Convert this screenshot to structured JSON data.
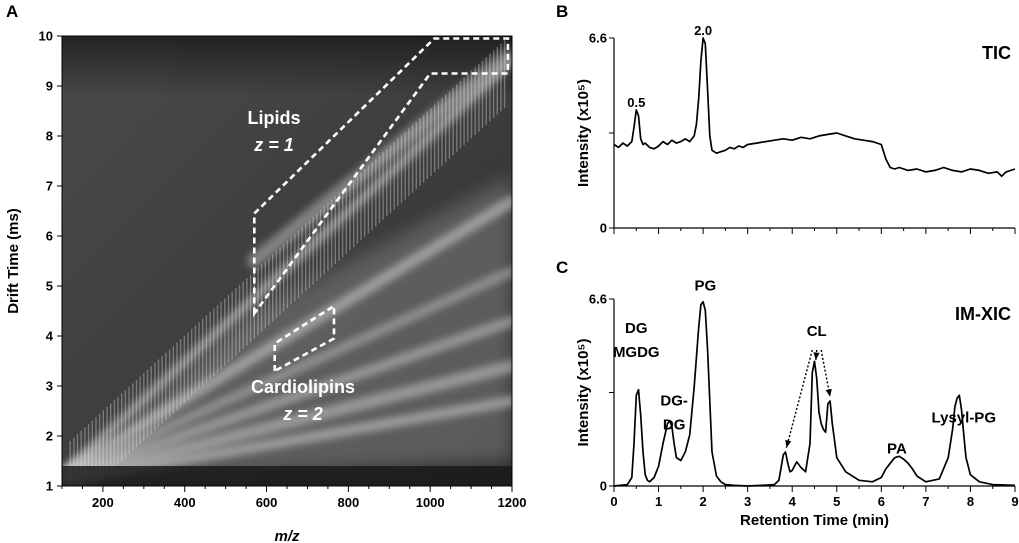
{
  "panels": {
    "a": "A",
    "b": "B",
    "c": "C"
  },
  "chart_data": [
    {
      "id": "A",
      "type": "heatmap",
      "xlabel": "m/z",
      "ylabel": "Drift Time (ms)",
      "xlim": [
        100,
        1200
      ],
      "ylim": [
        1,
        10
      ],
      "xticks": [
        "200",
        "400",
        "600",
        "800",
        "1000",
        "1200"
      ],
      "yticks": [
        "1",
        "2",
        "3",
        "4",
        "5",
        "6",
        "7",
        "8",
        "9",
        "10"
      ],
      "colors": {
        "background": "#3a3a3a",
        "trend": "#d8d8d8",
        "region_outline": "#ffffff"
      },
      "regions": [
        {
          "name": "lipids",
          "label_line1": "Lipids",
          "label_line2": "z = 1",
          "polygon": [
            [
              570,
              4.45
            ],
            [
              570,
              6.45
            ],
            [
              1010,
              9.95
            ],
            [
              1190,
              9.95
            ],
            [
              1190,
              9.25
            ],
            [
              1000,
              9.25
            ]
          ]
        },
        {
          "name": "cardiolipins",
          "label_line1": "Cardiolipins",
          "label_line2": "z = 2",
          "polygon": [
            [
              620,
              3.3
            ],
            [
              620,
              3.85
            ],
            [
              765,
              4.6
            ],
            [
              765,
              3.95
            ]
          ]
        }
      ]
    },
    {
      "id": "B",
      "type": "line",
      "title": "TIC",
      "ylabel": "Intensity (x10⁵)",
      "xlim": [
        0,
        9
      ],
      "ylim": [
        0,
        6.6
      ],
      "yticks": [
        "0",
        "6.6"
      ],
      "grid": false,
      "annotations": [
        {
          "text": "0.5",
          "x": 0.5,
          "y": 4.2
        },
        {
          "text": "2.0",
          "x": 2.0,
          "y": 6.7
        }
      ],
      "series": [
        {
          "x": [
            0,
            0.1,
            0.2,
            0.3,
            0.4,
            0.45,
            0.5,
            0.55,
            0.6,
            0.65,
            0.7,
            0.8,
            0.9,
            1.0,
            1.1,
            1.2,
            1.3,
            1.4,
            1.5,
            1.6,
            1.7,
            1.8,
            1.85,
            1.9,
            1.95,
            2.0,
            2.05,
            2.1,
            2.15,
            2.2,
            2.3,
            2.4,
            2.5,
            2.6,
            2.7,
            2.8,
            2.9,
            3.0,
            3.2,
            3.4,
            3.6,
            3.8,
            4.0,
            4.2,
            4.4,
            4.6,
            4.8,
            5.0,
            5.2,
            5.4,
            5.6,
            5.8,
            6.0,
            6.1,
            6.2,
            6.3,
            6.4,
            6.6,
            6.8,
            7.0,
            7.2,
            7.4,
            7.6,
            7.8,
            8.0,
            8.2,
            8.4,
            8.6,
            8.7,
            8.8,
            9.0
          ],
          "y": [
            2.9,
            2.8,
            2.95,
            2.85,
            3.0,
            3.5,
            4.1,
            3.9,
            3.1,
            2.9,
            2.95,
            2.8,
            2.75,
            2.85,
            3.0,
            2.9,
            3.05,
            2.95,
            3.0,
            3.1,
            3.0,
            3.2,
            3.6,
            4.5,
            5.8,
            6.6,
            6.4,
            4.8,
            3.2,
            2.7,
            2.6,
            2.65,
            2.7,
            2.8,
            2.75,
            2.85,
            2.8,
            2.9,
            2.95,
            3.0,
            3.05,
            3.1,
            3.05,
            3.15,
            3.1,
            3.2,
            3.25,
            3.3,
            3.2,
            3.1,
            3.05,
            3.0,
            2.9,
            2.4,
            2.1,
            2.05,
            2.1,
            2.0,
            2.05,
            1.95,
            2.0,
            2.1,
            2.0,
            1.95,
            2.05,
            2.0,
            1.9,
            1.95,
            1.8,
            1.95,
            2.05
          ]
        }
      ]
    },
    {
      "id": "C",
      "type": "line",
      "title": "IM-XIC",
      "xlabel": "Retention Time (min)",
      "ylabel": "Intensity (x10⁵)",
      "xlim": [
        0,
        9
      ],
      "ylim": [
        0,
        6.6
      ],
      "xticks": [
        "0",
        "1",
        "2",
        "3",
        "4",
        "5",
        "6",
        "7",
        "8",
        "9"
      ],
      "yticks": [
        "0",
        "6.6"
      ],
      "grid": false,
      "annotations": [
        {
          "text": "DG",
          "x": 0.5,
          "y": 5.4
        },
        {
          "text": "MGDG",
          "x": 0.5,
          "y": 4.55
        },
        {
          "text": "DG-",
          "x": 1.35,
          "y": 2.85
        },
        {
          "text": "DG",
          "x": 1.35,
          "y": 2.0
        },
        {
          "text": "PG",
          "x": 2.05,
          "y": 6.9
        },
        {
          "text": "CL",
          "x": 4.55,
          "y": 5.3
        },
        {
          "text": "PA",
          "x": 6.35,
          "y": 1.15
        },
        {
          "text": "Lysyl-PG",
          "x": 7.85,
          "y": 2.25
        }
      ],
      "series": [
        {
          "x": [
            0,
            0.3,
            0.4,
            0.45,
            0.5,
            0.55,
            0.6,
            0.65,
            0.7,
            0.75,
            0.8,
            0.9,
            1.0,
            1.1,
            1.2,
            1.25,
            1.3,
            1.35,
            1.4,
            1.5,
            1.6,
            1.7,
            1.8,
            1.9,
            1.95,
            2.0,
            2.05,
            2.1,
            2.15,
            2.2,
            2.3,
            2.4,
            2.5,
            2.7,
            3.0,
            3.3,
            3.6,
            3.7,
            3.8,
            3.85,
            3.9,
            3.95,
            4.0,
            4.1,
            4.2,
            4.3,
            4.4,
            4.45,
            4.5,
            4.55,
            4.6,
            4.65,
            4.7,
            4.75,
            4.8,
            4.85,
            4.9,
            5.0,
            5.2,
            5.5,
            5.8,
            6.0,
            6.1,
            6.2,
            6.3,
            6.4,
            6.5,
            6.6,
            6.7,
            6.8,
            7.0,
            7.3,
            7.5,
            7.6,
            7.65,
            7.7,
            7.75,
            7.8,
            7.85,
            7.9,
            8.0,
            8.2,
            8.5,
            9.0
          ],
          "y": [
            0,
            0.05,
            0.3,
            1.5,
            3.2,
            3.4,
            2.5,
            1.2,
            0.4,
            0.2,
            0.15,
            0.3,
            0.7,
            1.5,
            2.2,
            2.3,
            2.1,
            1.5,
            1.0,
            0.9,
            1.2,
            1.8,
            3.5,
            5.6,
            6.4,
            6.5,
            6.2,
            4.8,
            3.0,
            1.2,
            0.35,
            0.15,
            0.05,
            0.02,
            0,
            0.02,
            0.05,
            0.2,
            1.1,
            1.2,
            0.8,
            0.5,
            0.55,
            0.85,
            0.65,
            0.5,
            1.5,
            4.0,
            4.4,
            3.8,
            2.6,
            2.2,
            2.0,
            1.9,
            2.9,
            3.0,
            2.2,
            1.0,
            0.5,
            0.2,
            0.15,
            0.3,
            0.6,
            0.8,
            1.0,
            1.05,
            0.95,
            0.8,
            0.6,
            0.35,
            0.15,
            0.25,
            1.0,
            2.0,
            2.8,
            3.1,
            3.2,
            2.7,
            1.8,
            1.0,
            0.4,
            0.15,
            0.05,
            0.02
          ]
        }
      ]
    }
  ]
}
